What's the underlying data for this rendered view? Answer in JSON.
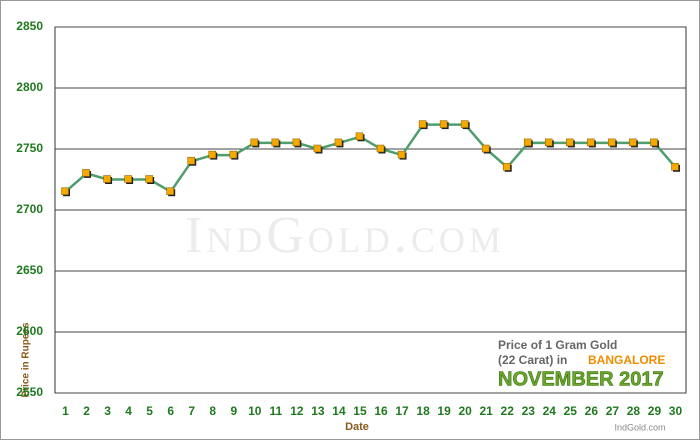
{
  "chart_data": {
    "type": "line",
    "x_label": "Date",
    "y_label": "Price in Rupees",
    "watermark": "IndGold.com",
    "annotations": [
      "Price of 1 Gram Gold",
      "(22 Carat) in",
      "BANGALORE",
      "NOVEMBER 2017"
    ],
    "footer": "IndGold.com",
    "categories": [
      1,
      2,
      3,
      4,
      5,
      6,
      7,
      8,
      9,
      10,
      11,
      12,
      13,
      14,
      15,
      16,
      17,
      18,
      19,
      20,
      21,
      22,
      23,
      24,
      25,
      26,
      27,
      28,
      29,
      30
    ],
    "values": [
      2715,
      2730,
      2725,
      2725,
      2725,
      2715,
      2740,
      2745,
      2745,
      2755,
      2755,
      2755,
      2750,
      2755,
      2760,
      2750,
      2745,
      2770,
      2770,
      2770,
      2750,
      2735,
      2755,
      2755,
      2755,
      2755,
      2755,
      2755,
      2755,
      2735
    ],
    "color": "#4f9e6e",
    "marker_color": "#f5a800",
    "ylim": [
      2550,
      2850
    ],
    "yticks": [
      2550,
      2600,
      2650,
      2700,
      2750,
      2800,
      2850
    ],
    "grid": true
  }
}
